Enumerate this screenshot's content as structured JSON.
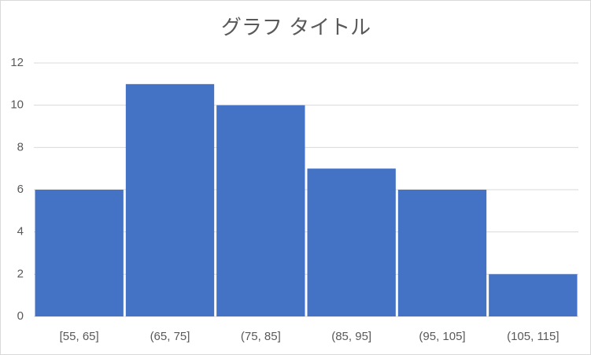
{
  "chart_data": {
    "type": "bar",
    "title": "グラフ タイトル",
    "categories": [
      "[55, 65]",
      "(65, 75]",
      "(75, 85]",
      "(85, 95]",
      "(95, 105]",
      "(105, 115]"
    ],
    "values": [
      6,
      11,
      10,
      7,
      6,
      2
    ],
    "color": "#4472c4",
    "ylim": [
      0,
      12
    ],
    "yticks": [
      0,
      2,
      4,
      6,
      8,
      10,
      12
    ],
    "grid": true
  }
}
